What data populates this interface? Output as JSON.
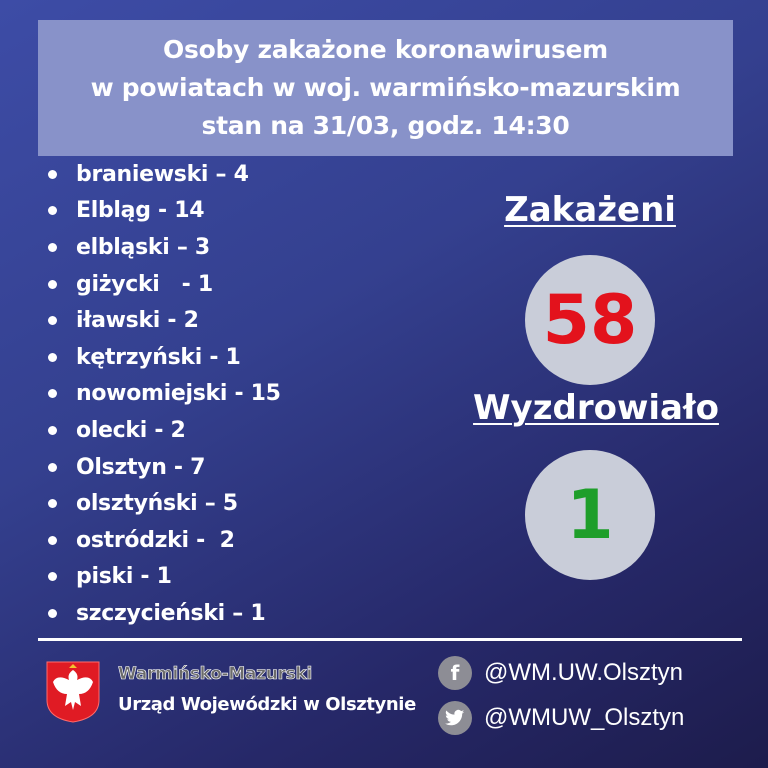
{
  "title": {
    "line1": "Osoby zakażone koronawirusem",
    "line2": "w powiatach w woj. warmińsko-mazurskim",
    "line3": "stan na 31/03, godz. 14:30"
  },
  "districts": [
    "braniewski – 4",
    "Elbląg - 14",
    "elbląski – 3",
    "giżycki   - 1",
    "iławski - 2",
    "kętrzyński - 1",
    "nowomiejski - 15",
    "olecki - 2",
    "Olsztyn - 7",
    "olsztyński – 5",
    "ostródzki -  2",
    "piski - 1",
    "szczycieński – 1"
  ],
  "stats": {
    "infected_label": "Zakażeni",
    "infected_value": "58",
    "recovered_label": "Wyzdrowiało",
    "recovered_value": "1"
  },
  "footer": {
    "org_line1": "Warmińsko-Mazurski",
    "org_line2": "Urząd Wojewódzki w Olsztynie",
    "facebook": "@WM.UW.Olsztyn",
    "twitter": "@WMUW_Olsztyn",
    "facebook_icon": "f"
  },
  "colors": {
    "infected": "#e3121c",
    "recovered": "#1e9e2a",
    "circle": "#c9cdd9"
  }
}
